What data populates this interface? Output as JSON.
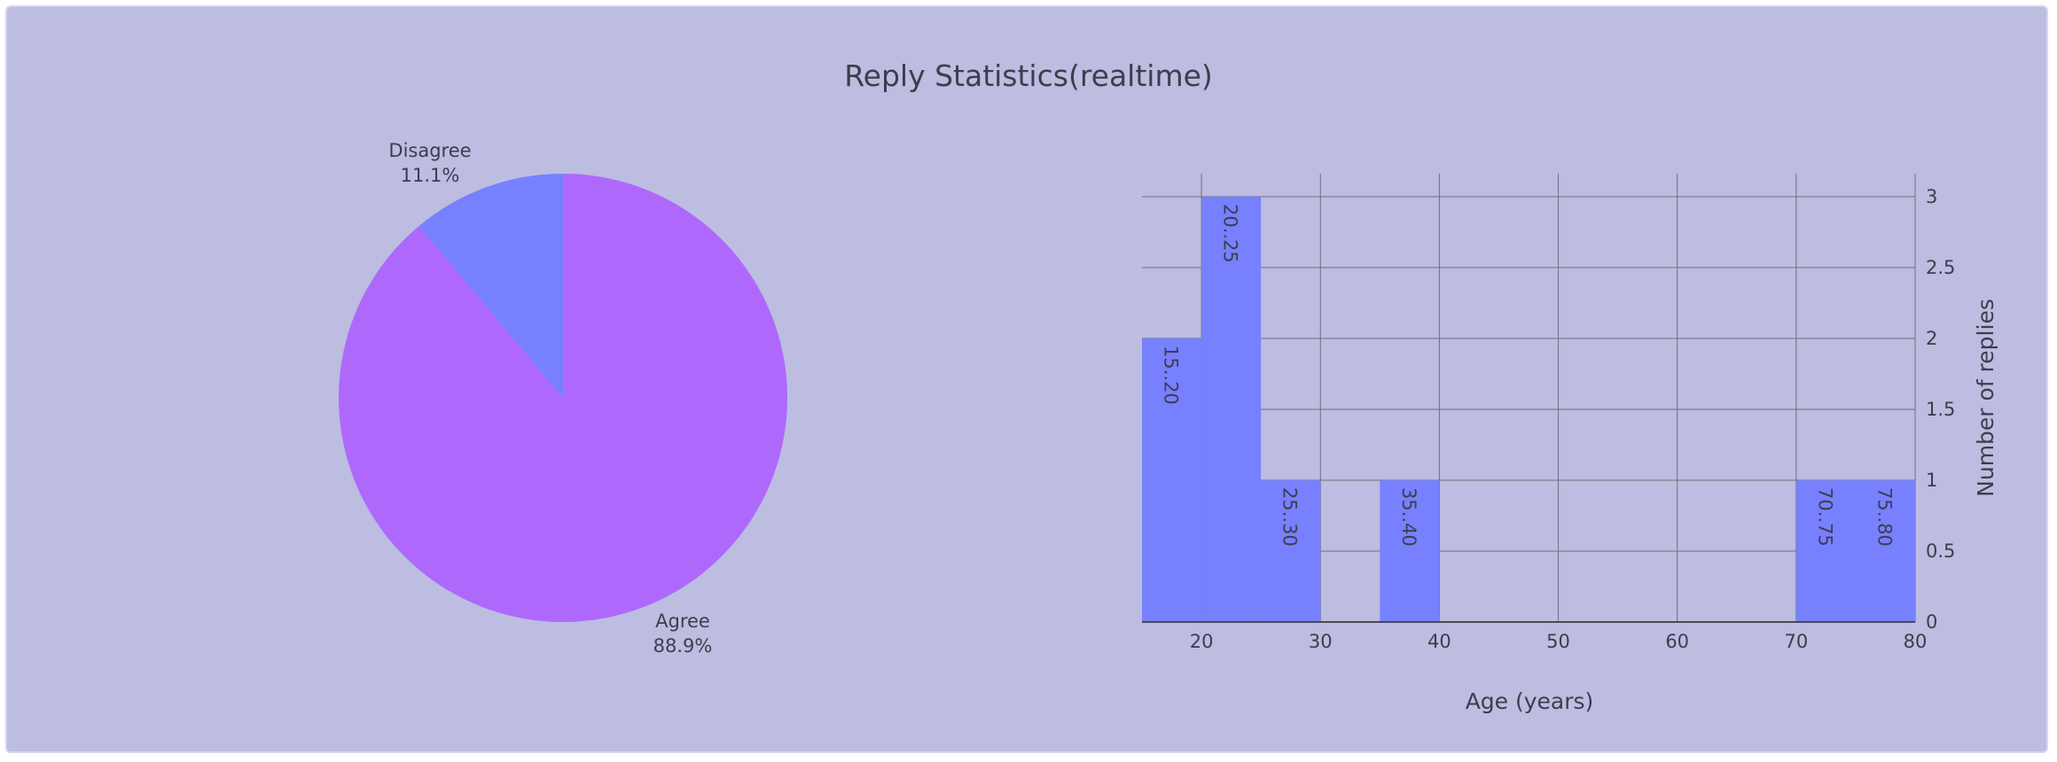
{
  "title": "Reply Statistics(realtime)",
  "colors": {
    "background": "#bcbde0",
    "agree": "#ae69fc",
    "disagree": "#7780fe",
    "bars": "#7780fe",
    "text": "#3d3d4d",
    "grid": "#6e6e7a"
  },
  "chart_data": [
    {
      "type": "pie",
      "slices": [
        {
          "label": "Disagree",
          "percent_label": "11.1%",
          "value": 11.1
        },
        {
          "label": "Agree",
          "percent_label": "88.9%",
          "value": 88.9
        }
      ]
    },
    {
      "type": "bar",
      "xlabel": "Age (years)",
      "ylabel": "Number of replies",
      "xlim": [
        15,
        80
      ],
      "ylim": [
        0,
        3
      ],
      "xticks": [
        "20",
        "30",
        "40",
        "50",
        "60",
        "70",
        "80"
      ],
      "yticks": [
        "0",
        "0.5",
        "1",
        "1.5",
        "2",
        "2.5",
        "3"
      ],
      "bins": [
        {
          "label": "15..20",
          "start": 15,
          "end": 20,
          "value": 2
        },
        {
          "label": "20..25",
          "start": 20,
          "end": 25,
          "value": 3
        },
        {
          "label": "25..30",
          "start": 25,
          "end": 30,
          "value": 1
        },
        {
          "label": "35..40",
          "start": 35,
          "end": 40,
          "value": 1
        },
        {
          "label": "70..75",
          "start": 70,
          "end": 75,
          "value": 1
        },
        {
          "label": "75..80",
          "start": 75,
          "end": 80,
          "value": 1
        }
      ],
      "grid": true,
      "y_axis_side": "right"
    }
  ]
}
